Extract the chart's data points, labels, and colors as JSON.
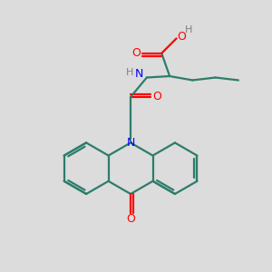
{
  "bg_color": "#dcdcdc",
  "bond_color": "#2d7d6b",
  "N_color": "#0000ff",
  "O_color": "#ff0000",
  "H_color": "#808080",
  "line_width": 1.6,
  "fig_size": [
    3.0,
    3.0
  ],
  "dpi": 100,
  "xlim": [
    0,
    10
  ],
  "ylim": [
    0,
    10
  ]
}
